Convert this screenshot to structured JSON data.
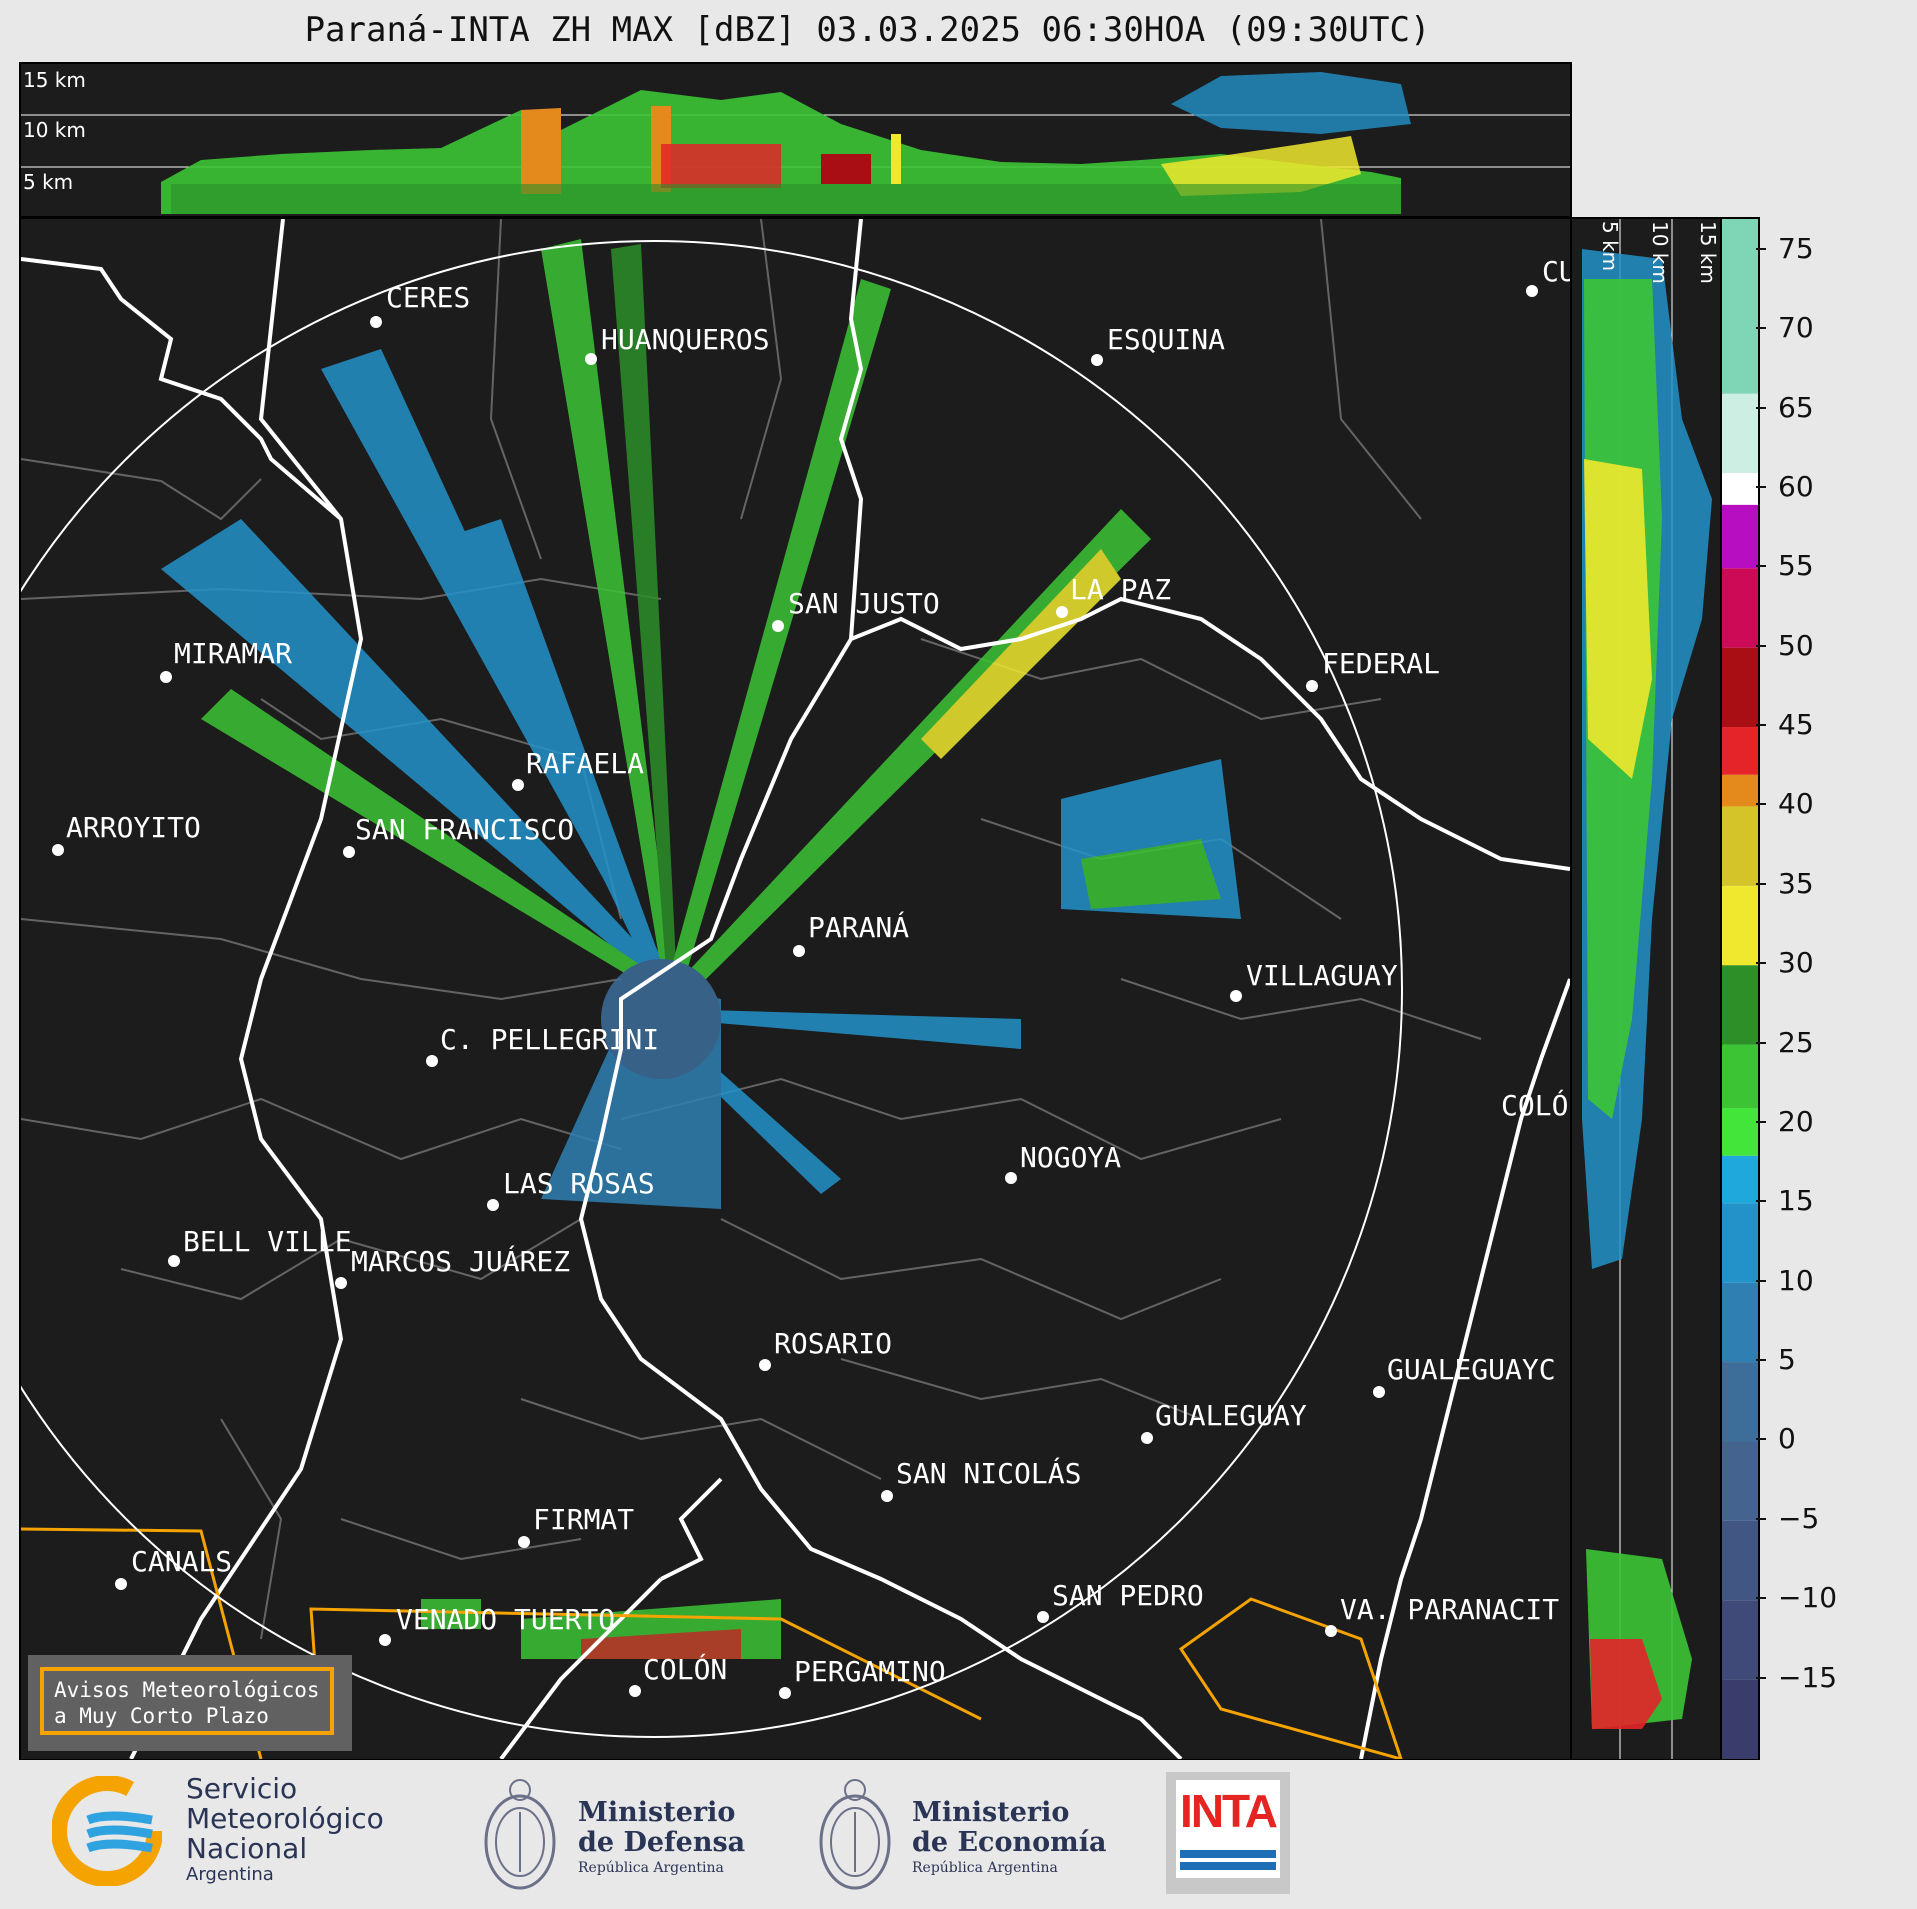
{
  "title": "Paraná-INTA ZH MAX [dBZ] 03.03.2025 06:30HOA (09:30UTC)",
  "top_panel": {
    "altitude_labels": [
      "15 km",
      "10 km",
      "5 km"
    ]
  },
  "side_panel": {
    "altitude_labels": [
      "5 km",
      "10 km",
      "15 km"
    ]
  },
  "colorbar": {
    "ticks": [
      "75",
      "70",
      "65",
      "60",
      "55",
      "50",
      "45",
      "40",
      "35",
      "30",
      "25",
      "20",
      "15",
      "10",
      "5",
      "0",
      "−5",
      "−10",
      "−15"
    ],
    "range_dbz": [
      -20,
      77
    ],
    "bands": [
      {
        "from": -20,
        "to": -15,
        "color": "#3a3d6b"
      },
      {
        "from": -15,
        "to": -10,
        "color": "#3f4a78"
      },
      {
        "from": -10,
        "to": -5,
        "color": "#425684"
      },
      {
        "from": -5,
        "to": 0,
        "color": "#44638f"
      },
      {
        "from": 0,
        "to": 5,
        "color": "#3d6e9a"
      },
      {
        "from": 5,
        "to": 10,
        "color": "#2f7fb3"
      },
      {
        "from": 10,
        "to": 15,
        "color": "#2392c9"
      },
      {
        "from": 15,
        "to": 18,
        "color": "#1fa8dc"
      },
      {
        "from": 18,
        "to": 21,
        "color": "#44e53a"
      },
      {
        "from": 21,
        "to": 25,
        "color": "#3cc435"
      },
      {
        "from": 25,
        "to": 30,
        "color": "#2c8f28"
      },
      {
        "from": 30,
        "to": 35,
        "color": "#f0e82e"
      },
      {
        "from": 35,
        "to": 40,
        "color": "#d4c42a"
      },
      {
        "from": 40,
        "to": 42,
        "color": "#e4891c"
      },
      {
        "from": 42,
        "to": 45,
        "color": "#e42429"
      },
      {
        "from": 45,
        "to": 50,
        "color": "#a80e14"
      },
      {
        "from": 50,
        "to": 55,
        "color": "#cc0a55"
      },
      {
        "from": 55,
        "to": 59,
        "color": "#b60ec0"
      },
      {
        "from": 59,
        "to": 61,
        "color": "#ffffff"
      },
      {
        "from": 61,
        "to": 66,
        "color": "#cdeee2"
      },
      {
        "from": 66,
        "to": 77,
        "color": "#7fd6b6"
      }
    ]
  },
  "cities": [
    {
      "name": "CERES"
    },
    {
      "name": "HUANQUEROS"
    },
    {
      "name": "ESQUINA"
    },
    {
      "name": "CU"
    },
    {
      "name": "SAN JUSTO"
    },
    {
      "name": "LA PAZ"
    },
    {
      "name": "MIRAMAR"
    },
    {
      "name": "FEDERAL"
    },
    {
      "name": "RAFAELA"
    },
    {
      "name": "ARROYITO"
    },
    {
      "name": "SAN FRANCISCO"
    },
    {
      "name": "PARANÁ"
    },
    {
      "name": "VILLAGUAY"
    },
    {
      "name": "C. PELLEGRINI"
    },
    {
      "name": "COLÓ"
    },
    {
      "name": "NOGOYA"
    },
    {
      "name": "LAS ROSAS"
    },
    {
      "name": "BELL VILLE"
    },
    {
      "name": "MARCOS JUÁREZ"
    },
    {
      "name": "ROSARIO"
    },
    {
      "name": "GUALEGUAYC"
    },
    {
      "name": "GUALEGUAY"
    },
    {
      "name": "SAN NICOLÁS"
    },
    {
      "name": "FIRMAT"
    },
    {
      "name": "CANALS"
    },
    {
      "name": "SAN PEDRO"
    },
    {
      "name": "VA. PARANACIT"
    },
    {
      "name": "VENADO TUERTO"
    },
    {
      "name": "COLÓN"
    },
    {
      "name": "PERGAMINO"
    }
  ],
  "alerts": {
    "line1": "Avisos Meteorológicos",
    "line2": "a Muy Corto Plazo"
  },
  "footer": {
    "smn": {
      "line1": "Servicio",
      "line2": "Meteorológico",
      "line3": "Nacional",
      "line4": "Argentina"
    },
    "defensa": {
      "line1": "Ministerio",
      "line2": "de Defensa",
      "line3": "República Argentina"
    },
    "economia": {
      "line1": "Ministerio",
      "line2": "de Economía",
      "line3": "República Argentina"
    },
    "inta": {
      "label": "INTA"
    }
  },
  "colors": {
    "border_orange": "#f5a300",
    "map_bg": "#1c1c1c"
  }
}
